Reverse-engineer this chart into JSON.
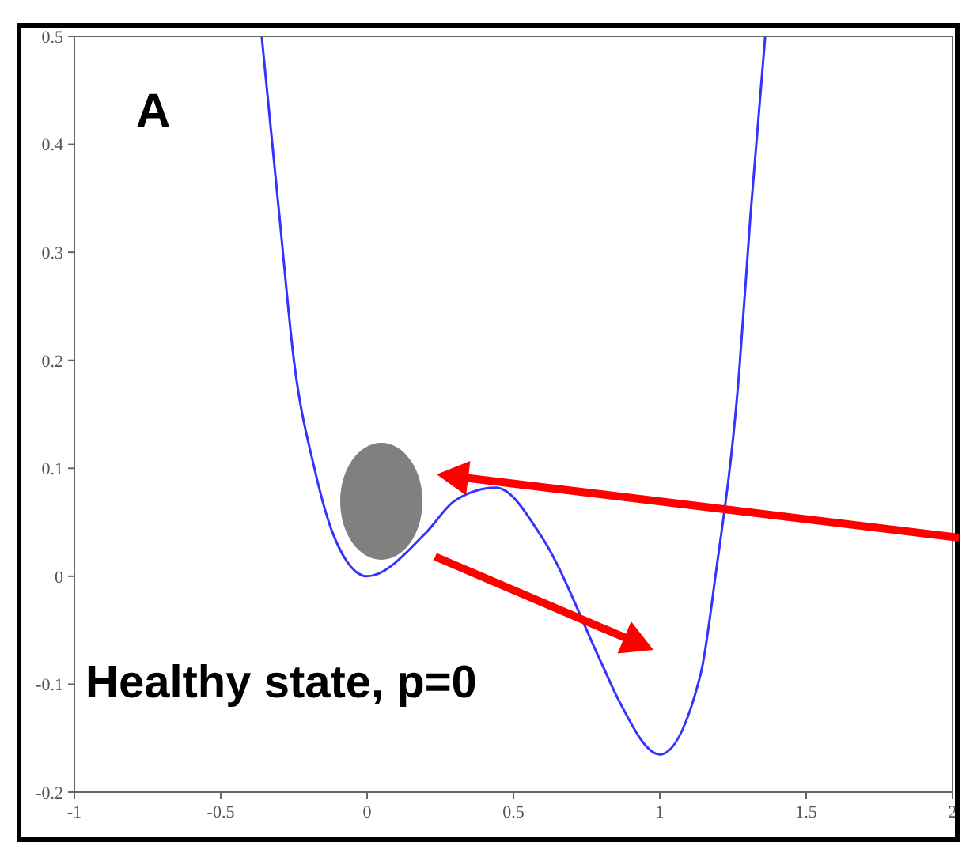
{
  "chart_data": {
    "type": "line",
    "annotations": [
      "A",
      "Healthy state, p=0"
    ],
    "x": [
      -0.36,
      -0.3,
      -0.25,
      -0.18,
      -0.11,
      0,
      0.2,
      0.3,
      0.44,
      0.6,
      0.8,
      0.86,
      1.0,
      1.14,
      1.19,
      1.27,
      1.31,
      1.36
    ],
    "series": [
      {
        "color": "#3333ff",
        "values": [
          0.5,
          0.335,
          0.2,
          0.1,
          0.035,
          0,
          0.04,
          0.07,
          0.082,
          0.035,
          -0.08,
          -0.115,
          -0.165,
          -0.09,
          0,
          0.185,
          0.335,
          0.5
        ]
      }
    ],
    "xlim": [
      -1,
      2
    ],
    "xticks": [
      -1,
      -0.5,
      0,
      0.5,
      1,
      1.5,
      2
    ],
    "ylim": [
      -0.2,
      0.5
    ],
    "yticks": [
      -0.2,
      -0.1,
      0,
      0.1,
      0.2,
      0.3,
      0.4,
      0.5
    ],
    "grid": false,
    "legend": false,
    "marker": "none",
    "line_style": "solid"
  }
}
